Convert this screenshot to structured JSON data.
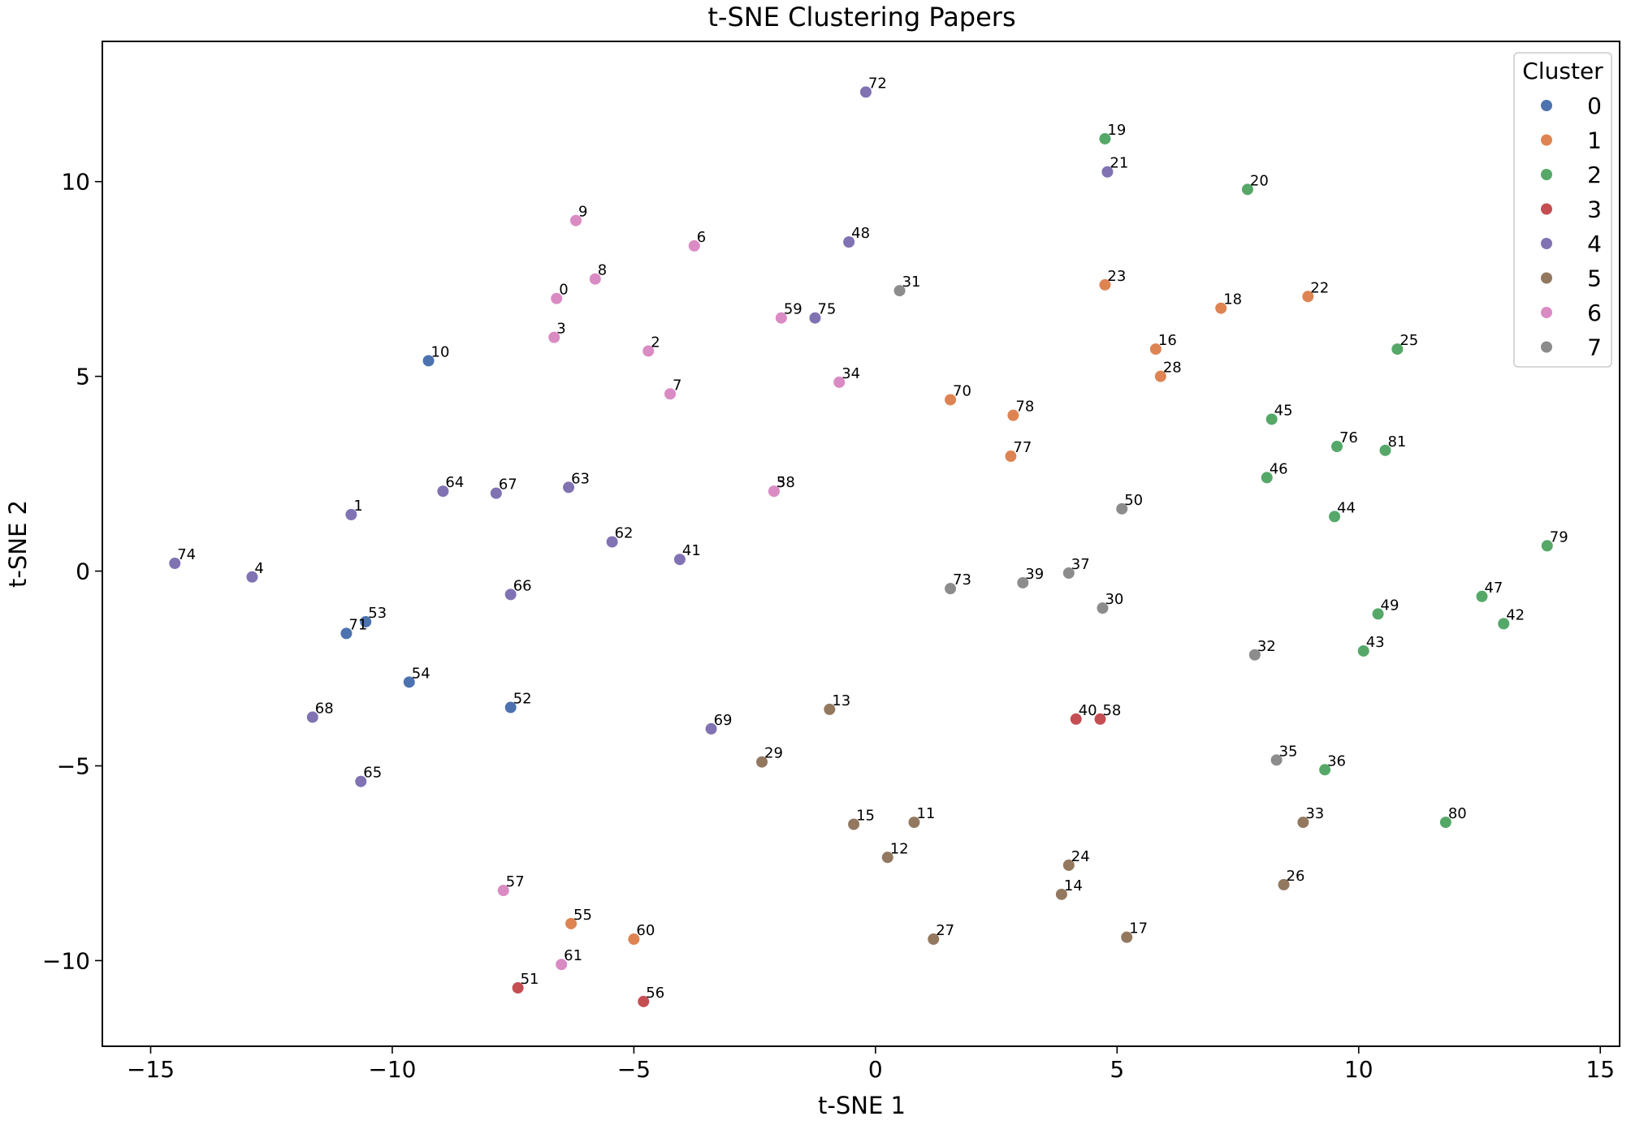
{
  "chart_data": {
    "type": "scatter",
    "title": "t-SNE Clustering Papers",
    "xlabel": "t-SNE 1",
    "ylabel": "t-SNE 2",
    "xlim": [
      -16,
      15.4
    ],
    "ylim": [
      -12.2,
      13.6
    ],
    "xticks": [
      -15,
      -10,
      -5,
      0,
      5,
      10,
      15
    ],
    "xtick_labels": [
      "−15",
      "−10",
      "−5",
      "0",
      "5",
      "10",
      "15"
    ],
    "yticks": [
      -10,
      -5,
      0,
      5,
      10
    ],
    "ytick_labels": [
      "−10",
      "−5",
      "0",
      "5",
      "10"
    ],
    "grid": false,
    "legend": {
      "title": "Cluster",
      "position": "top-right",
      "entries": [
        "0",
        "1",
        "2",
        "3",
        "4",
        "5",
        "6",
        "7"
      ]
    },
    "colors": [
      "#4c72b0",
      "#dd8452",
      "#55a868",
      "#c44e52",
      "#8172b3",
      "#937860",
      "#da8bc3",
      "#8c8c8c"
    ],
    "points": [
      {
        "label": "0",
        "x": -6.6,
        "y": 7.0,
        "cluster": 6
      },
      {
        "label": "1",
        "x": -10.85,
        "y": 1.45,
        "cluster": 4
      },
      {
        "label": "2",
        "x": -4.7,
        "y": 5.65,
        "cluster": 6
      },
      {
        "label": "3",
        "x": -6.65,
        "y": 6.0,
        "cluster": 6
      },
      {
        "label": "4",
        "x": -12.9,
        "y": -0.15,
        "cluster": 4
      },
      {
        "label": "5",
        "x": -2.1,
        "y": 2.05,
        "cluster": 6
      },
      {
        "label": "6",
        "x": -3.75,
        "y": 8.35,
        "cluster": 6
      },
      {
        "label": "7",
        "x": -4.25,
        "y": 4.55,
        "cluster": 6
      },
      {
        "label": "8",
        "x": -5.8,
        "y": 7.5,
        "cluster": 6
      },
      {
        "label": "9",
        "x": -6.2,
        "y": 9.0,
        "cluster": 6
      },
      {
        "label": "10",
        "x": -9.25,
        "y": 5.4,
        "cluster": 0
      },
      {
        "label": "11",
        "x": 0.8,
        "y": -6.45,
        "cluster": 5
      },
      {
        "label": "12",
        "x": 0.25,
        "y": -7.35,
        "cluster": 5
      },
      {
        "label": "13",
        "x": -0.95,
        "y": -3.55,
        "cluster": 5
      },
      {
        "label": "14",
        "x": 3.85,
        "y": -8.3,
        "cluster": 5
      },
      {
        "label": "15",
        "x": -0.45,
        "y": -6.5,
        "cluster": 5
      },
      {
        "label": "16",
        "x": 5.8,
        "y": 5.7,
        "cluster": 1
      },
      {
        "label": "17",
        "x": 5.2,
        "y": -9.4,
        "cluster": 5
      },
      {
        "label": "18",
        "x": 7.15,
        "y": 6.75,
        "cluster": 1
      },
      {
        "label": "19",
        "x": 4.75,
        "y": 11.1,
        "cluster": 2
      },
      {
        "label": "20",
        "x": 7.7,
        "y": 9.8,
        "cluster": 2
      },
      {
        "label": "21",
        "x": 4.8,
        "y": 10.25,
        "cluster": 4
      },
      {
        "label": "22",
        "x": 8.95,
        "y": 7.05,
        "cluster": 1
      },
      {
        "label": "23",
        "x": 4.75,
        "y": 7.35,
        "cluster": 1
      },
      {
        "label": "24",
        "x": 4.0,
        "y": -7.55,
        "cluster": 5
      },
      {
        "label": "25",
        "x": 10.8,
        "y": 5.7,
        "cluster": 2
      },
      {
        "label": "26",
        "x": 8.45,
        "y": -8.05,
        "cluster": 5
      },
      {
        "label": "27",
        "x": 1.2,
        "y": -9.45,
        "cluster": 5
      },
      {
        "label": "28",
        "x": 5.9,
        "y": 5.0,
        "cluster": 1
      },
      {
        "label": "29",
        "x": -2.35,
        "y": -4.9,
        "cluster": 5
      },
      {
        "label": "30",
        "x": 4.7,
        "y": -0.95,
        "cluster": 7
      },
      {
        "label": "31",
        "x": 0.5,
        "y": 7.2,
        "cluster": 7
      },
      {
        "label": "32",
        "x": 7.85,
        "y": -2.15,
        "cluster": 7
      },
      {
        "label": "33",
        "x": 8.85,
        "y": -6.45,
        "cluster": 5
      },
      {
        "label": "34",
        "x": -0.75,
        "y": 4.85,
        "cluster": 6
      },
      {
        "label": "35",
        "x": 8.3,
        "y": -4.85,
        "cluster": 7
      },
      {
        "label": "36",
        "x": 9.3,
        "y": -5.1,
        "cluster": 2
      },
      {
        "label": "37",
        "x": 4.0,
        "y": -0.05,
        "cluster": 7
      },
      {
        "label": "38",
        "x": -2.1,
        "y": 2.05,
        "cluster": 6
      },
      {
        "label": "39",
        "x": 3.05,
        "y": -0.3,
        "cluster": 7
      },
      {
        "label": "40",
        "x": 4.15,
        "y": -3.8,
        "cluster": 3
      },
      {
        "label": "41",
        "x": -4.05,
        "y": 0.3,
        "cluster": 4
      },
      {
        "label": "42",
        "x": 13.0,
        "y": -1.35,
        "cluster": 2
      },
      {
        "label": "43",
        "x": 10.1,
        "y": -2.05,
        "cluster": 2
      },
      {
        "label": "44",
        "x": 9.5,
        "y": 1.4,
        "cluster": 2
      },
      {
        "label": "45",
        "x": 8.2,
        "y": 3.9,
        "cluster": 2
      },
      {
        "label": "46",
        "x": 8.1,
        "y": 2.4,
        "cluster": 2
      },
      {
        "label": "47",
        "x": 12.55,
        "y": -0.65,
        "cluster": 2
      },
      {
        "label": "48",
        "x": -0.55,
        "y": 8.45,
        "cluster": 4
      },
      {
        "label": "49",
        "x": 10.4,
        "y": -1.1,
        "cluster": 2
      },
      {
        "label": "50",
        "x": 5.1,
        "y": 1.6,
        "cluster": 7
      },
      {
        "label": "51",
        "x": -7.4,
        "y": -10.7,
        "cluster": 3
      },
      {
        "label": "52",
        "x": -7.55,
        "y": -3.5,
        "cluster": 0
      },
      {
        "label": "53",
        "x": -10.55,
        "y": -1.3,
        "cluster": 0
      },
      {
        "label": "54",
        "x": -9.65,
        "y": -2.85,
        "cluster": 0
      },
      {
        "label": "55",
        "x": -6.3,
        "y": -9.05,
        "cluster": 1
      },
      {
        "label": "56",
        "x": -4.8,
        "y": -11.05,
        "cluster": 3
      },
      {
        "label": "57",
        "x": -7.7,
        "y": -8.2,
        "cluster": 6
      },
      {
        "label": "58",
        "x": 4.65,
        "y": -3.8,
        "cluster": 3
      },
      {
        "label": "59",
        "x": -1.95,
        "y": 6.5,
        "cluster": 6
      },
      {
        "label": "60",
        "x": -5.0,
        "y": -9.45,
        "cluster": 1
      },
      {
        "label": "61",
        "x": -6.5,
        "y": -10.1,
        "cluster": 6
      },
      {
        "label": "62",
        "x": -5.45,
        "y": 0.75,
        "cluster": 4
      },
      {
        "label": "63",
        "x": -6.35,
        "y": 2.15,
        "cluster": 4
      },
      {
        "label": "64",
        "x": -8.95,
        "y": 2.05,
        "cluster": 4
      },
      {
        "label": "65",
        "x": -10.65,
        "y": -5.4,
        "cluster": 4
      },
      {
        "label": "66",
        "x": -7.55,
        "y": -0.6,
        "cluster": 4
      },
      {
        "label": "67",
        "x": -7.85,
        "y": 2.0,
        "cluster": 4
      },
      {
        "label": "68",
        "x": -11.65,
        "y": -3.75,
        "cluster": 4
      },
      {
        "label": "69",
        "x": -3.4,
        "y": -4.05,
        "cluster": 4
      },
      {
        "label": "70",
        "x": 1.55,
        "y": 4.4,
        "cluster": 1
      },
      {
        "label": "71",
        "x": -10.95,
        "y": -1.6,
        "cluster": 0
      },
      {
        "label": "72",
        "x": -0.2,
        "y": 12.3,
        "cluster": 4
      },
      {
        "label": "73",
        "x": 1.55,
        "y": -0.45,
        "cluster": 7
      },
      {
        "label": "74",
        "x": -14.5,
        "y": 0.2,
        "cluster": 4
      },
      {
        "label": "75",
        "x": -1.25,
        "y": 6.5,
        "cluster": 4
      },
      {
        "label": "76",
        "x": 9.55,
        "y": 3.2,
        "cluster": 2
      },
      {
        "label": "77",
        "x": 2.8,
        "y": 2.95,
        "cluster": 1
      },
      {
        "label": "78",
        "x": 2.85,
        "y": 4.0,
        "cluster": 1
      },
      {
        "label": "79",
        "x": 13.9,
        "y": 0.65,
        "cluster": 2
      },
      {
        "label": "80",
        "x": 11.8,
        "y": -6.45,
        "cluster": 2
      },
      {
        "label": "81",
        "x": 10.55,
        "y": 3.1,
        "cluster": 2
      }
    ]
  }
}
